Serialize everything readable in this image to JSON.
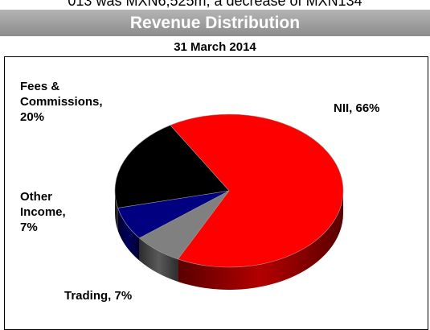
{
  "page_text": "013 was MXN6,525m, a decrease of MXN134",
  "chart_data": {
    "type": "pie3d",
    "title": "Revenue Distribution",
    "subtitle": "31 March 2014",
    "values": [
      66,
      7,
      7,
      20
    ],
    "value_labels": [
      "NII, 66%",
      "Trading, 7%",
      "Other Income, 7%",
      "Fees & Commissions, 20%"
    ],
    "colors": [
      "#ff0000",
      "#808080",
      "#000080",
      "#000000"
    ]
  }
}
